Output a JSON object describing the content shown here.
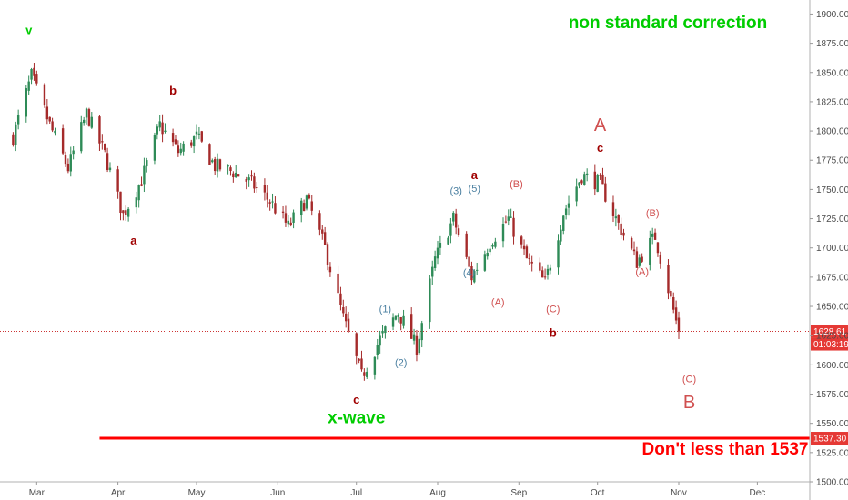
{
  "chart_data": {
    "type": "candlestick",
    "title": "non standard correction",
    "x_ticks": [
      "Mar",
      "Apr",
      "May",
      "Jun",
      "Jul",
      "Aug",
      "Sep",
      "Oct",
      "Nov",
      "Dec"
    ],
    "y_ticks": [
      "1500.00",
      "1525.00",
      "1550.00",
      "1575.00",
      "1600.00",
      "1625.00",
      "1650.00",
      "1675.00",
      "1700.00",
      "1725.00",
      "1750.00",
      "1775.00",
      "1800.00",
      "1825.00",
      "1850.00",
      "1875.00",
      "1900.00"
    ],
    "ylim": [
      1500,
      1912
    ],
    "price_levels": {
      "current_price": "1628.61",
      "countdown": "01:03:19",
      "support_price": "1537.30"
    },
    "support_note": "Don't less than 1537",
    "series_path": [
      {
        "date": "2019-02-20",
        "price": 1795
      },
      {
        "date": "2019-02-27",
        "price": 1847
      },
      {
        "date": "2019-03-06",
        "price": 1805
      },
      {
        "date": "2019-03-13",
        "price": 1768
      },
      {
        "date": "2019-03-20",
        "price": 1815
      },
      {
        "date": "2019-03-27",
        "price": 1780
      },
      {
        "date": "2019-04-03",
        "price": 1728
      },
      {
        "date": "2019-04-10",
        "price": 1758
      },
      {
        "date": "2019-04-17",
        "price": 1805
      },
      {
        "date": "2019-04-24",
        "price": 1782
      },
      {
        "date": "2019-05-01",
        "price": 1795
      },
      {
        "date": "2019-05-08",
        "price": 1770
      },
      {
        "date": "2019-05-15",
        "price": 1765
      },
      {
        "date": "2019-05-22",
        "price": 1755
      },
      {
        "date": "2019-05-29",
        "price": 1740
      },
      {
        "date": "2019-06-05",
        "price": 1718
      },
      {
        "date": "2019-06-12",
        "price": 1742
      },
      {
        "date": "2019-06-19",
        "price": 1700
      },
      {
        "date": "2019-06-26",
        "price": 1640
      },
      {
        "date": "2019-07-03",
        "price": 1590
      },
      {
        "date": "2019-07-10",
        "price": 1622
      },
      {
        "date": "2019-07-17",
        "price": 1645
      },
      {
        "date": "2019-07-24",
        "price": 1615
      },
      {
        "date": "2019-07-31",
        "price": 1690
      },
      {
        "date": "2019-08-07",
        "price": 1725
      },
      {
        "date": "2019-08-14",
        "price": 1675
      },
      {
        "date": "2019-08-21",
        "price": 1705
      },
      {
        "date": "2019-08-28",
        "price": 1725
      },
      {
        "date": "2019-09-04",
        "price": 1690
      },
      {
        "date": "2019-09-11",
        "price": 1670
      },
      {
        "date": "2019-09-18",
        "price": 1730
      },
      {
        "date": "2019-09-25",
        "price": 1762
      },
      {
        "date": "2019-10-02",
        "price": 1755
      },
      {
        "date": "2019-10-09",
        "price": 1720
      },
      {
        "date": "2019-10-16",
        "price": 1688
      },
      {
        "date": "2019-10-23",
        "price": 1710
      },
      {
        "date": "2019-10-28",
        "price": 1665
      },
      {
        "date": "2019-11-01",
        "price": 1628
      }
    ],
    "wave_labels": [
      {
        "text": "v",
        "date": "2019-02-26",
        "price": 1883,
        "color": "#00cc00",
        "size": "small-bold"
      },
      {
        "text": "b",
        "date": "2019-04-22",
        "price": 1831,
        "color": "#a00000",
        "size": "small-bold"
      },
      {
        "text": "a",
        "date": "2019-04-07",
        "price": 1703,
        "color": "#a00000",
        "size": "small-bold"
      },
      {
        "text": "c",
        "date": "2019-07-01",
        "price": 1567,
        "color": "#a00000",
        "size": "small-bold"
      },
      {
        "text": "x-wave",
        "date": "2019-07-01",
        "price": 1550,
        "color": "#00cc00",
        "size": "large-bold"
      },
      {
        "text": "(1)",
        "date": "2019-07-12",
        "price": 1645,
        "color": "#4a7fa0",
        "size": "small"
      },
      {
        "text": "(2)",
        "date": "2019-07-18",
        "price": 1599,
        "color": "#4a7fa0",
        "size": "small"
      },
      {
        "text": "(3)",
        "date": "2019-08-08",
        "price": 1746,
        "color": "#4a7fa0",
        "size": "small"
      },
      {
        "text": "(5)",
        "date": "2019-08-15",
        "price": 1748,
        "color": "#4a7fa0",
        "size": "small"
      },
      {
        "text": "(4)",
        "date": "2019-08-13",
        "price": 1676,
        "color": "#4a7fa0",
        "size": "small"
      },
      {
        "text": "a",
        "date": "2019-08-15",
        "price": 1759,
        "color": "#a00000",
        "size": "small-bold"
      },
      {
        "text": "(A)",
        "date": "2019-08-24",
        "price": 1651,
        "color": "#d05050",
        "size": "small"
      },
      {
        "text": "(B)",
        "date": "2019-08-31",
        "price": 1752,
        "color": "#d05050",
        "size": "small"
      },
      {
        "text": "(C)",
        "date": "2019-09-14",
        "price": 1645,
        "color": "#d05050",
        "size": "small"
      },
      {
        "text": "b",
        "date": "2019-09-14",
        "price": 1624,
        "color": "#a00000",
        "size": "small-bold"
      },
      {
        "text": "A",
        "date": "2019-10-02",
        "price": 1800,
        "color": "#d05050",
        "size": "large"
      },
      {
        "text": "c",
        "date": "2019-10-02",
        "price": 1782,
        "color": "#a00000",
        "size": "small-bold"
      },
      {
        "text": "(B)",
        "date": "2019-10-22",
        "price": 1727,
        "color": "#d05050",
        "size": "small"
      },
      {
        "text": "(A)",
        "date": "2019-10-18",
        "price": 1677,
        "color": "#d05050",
        "size": "small"
      },
      {
        "text": "(C)",
        "date": "2019-11-05",
        "price": 1585,
        "color": "#d05050",
        "size": "small"
      },
      {
        "text": "B",
        "date": "2019-11-05",
        "price": 1563,
        "color": "#d05050",
        "size": "large"
      }
    ],
    "colors": {
      "up": "#2e8b57",
      "down": "#a52a2a",
      "support_line": "#ff0000",
      "current_price_line": "#cc3333",
      "tag_bg": "#e53935",
      "title_color": "#00cc00",
      "note_color": "#ff0000"
    },
    "x_range": [
      "2019-02-15",
      "2019-12-21"
    ],
    "grid": false,
    "axis_side": "right"
  }
}
